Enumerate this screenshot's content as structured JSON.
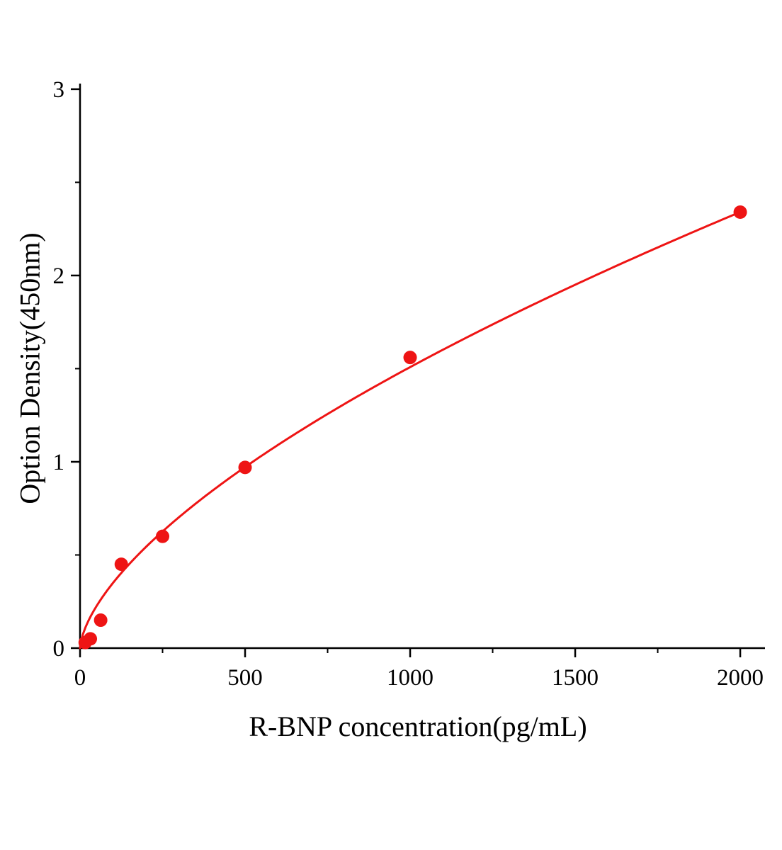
{
  "chart_data": {
    "type": "scatter",
    "title": "",
    "xlabel": "R-BNP concentration(pg/mL)",
    "ylabel": "Option Density(450nm)",
    "x": [
      15.6,
      31.2,
      62.5,
      125,
      250,
      500,
      1000,
      2000
    ],
    "y": [
      0.03,
      0.05,
      0.15,
      0.45,
      0.6,
      0.97,
      1.56,
      2.34
    ],
    "xlim": [
      0,
      2075
    ],
    "ylim": [
      0,
      3.03
    ],
    "xticks": [
      0,
      500,
      1000,
      1500,
      2000
    ],
    "yticks": [
      0,
      1,
      2,
      3
    ],
    "minor_x_step": 250,
    "minor_y_step": 0.5,
    "grid": false,
    "legend": null,
    "curve_fit": {
      "type": "power",
      "a": 0.0189,
      "b": 0.634,
      "x_start": 0,
      "x_end": 2000
    },
    "marker_color": "#ee1414",
    "line_color": "#ee1414",
    "axis_color": "#000000",
    "background_color": "#ffffff"
  }
}
